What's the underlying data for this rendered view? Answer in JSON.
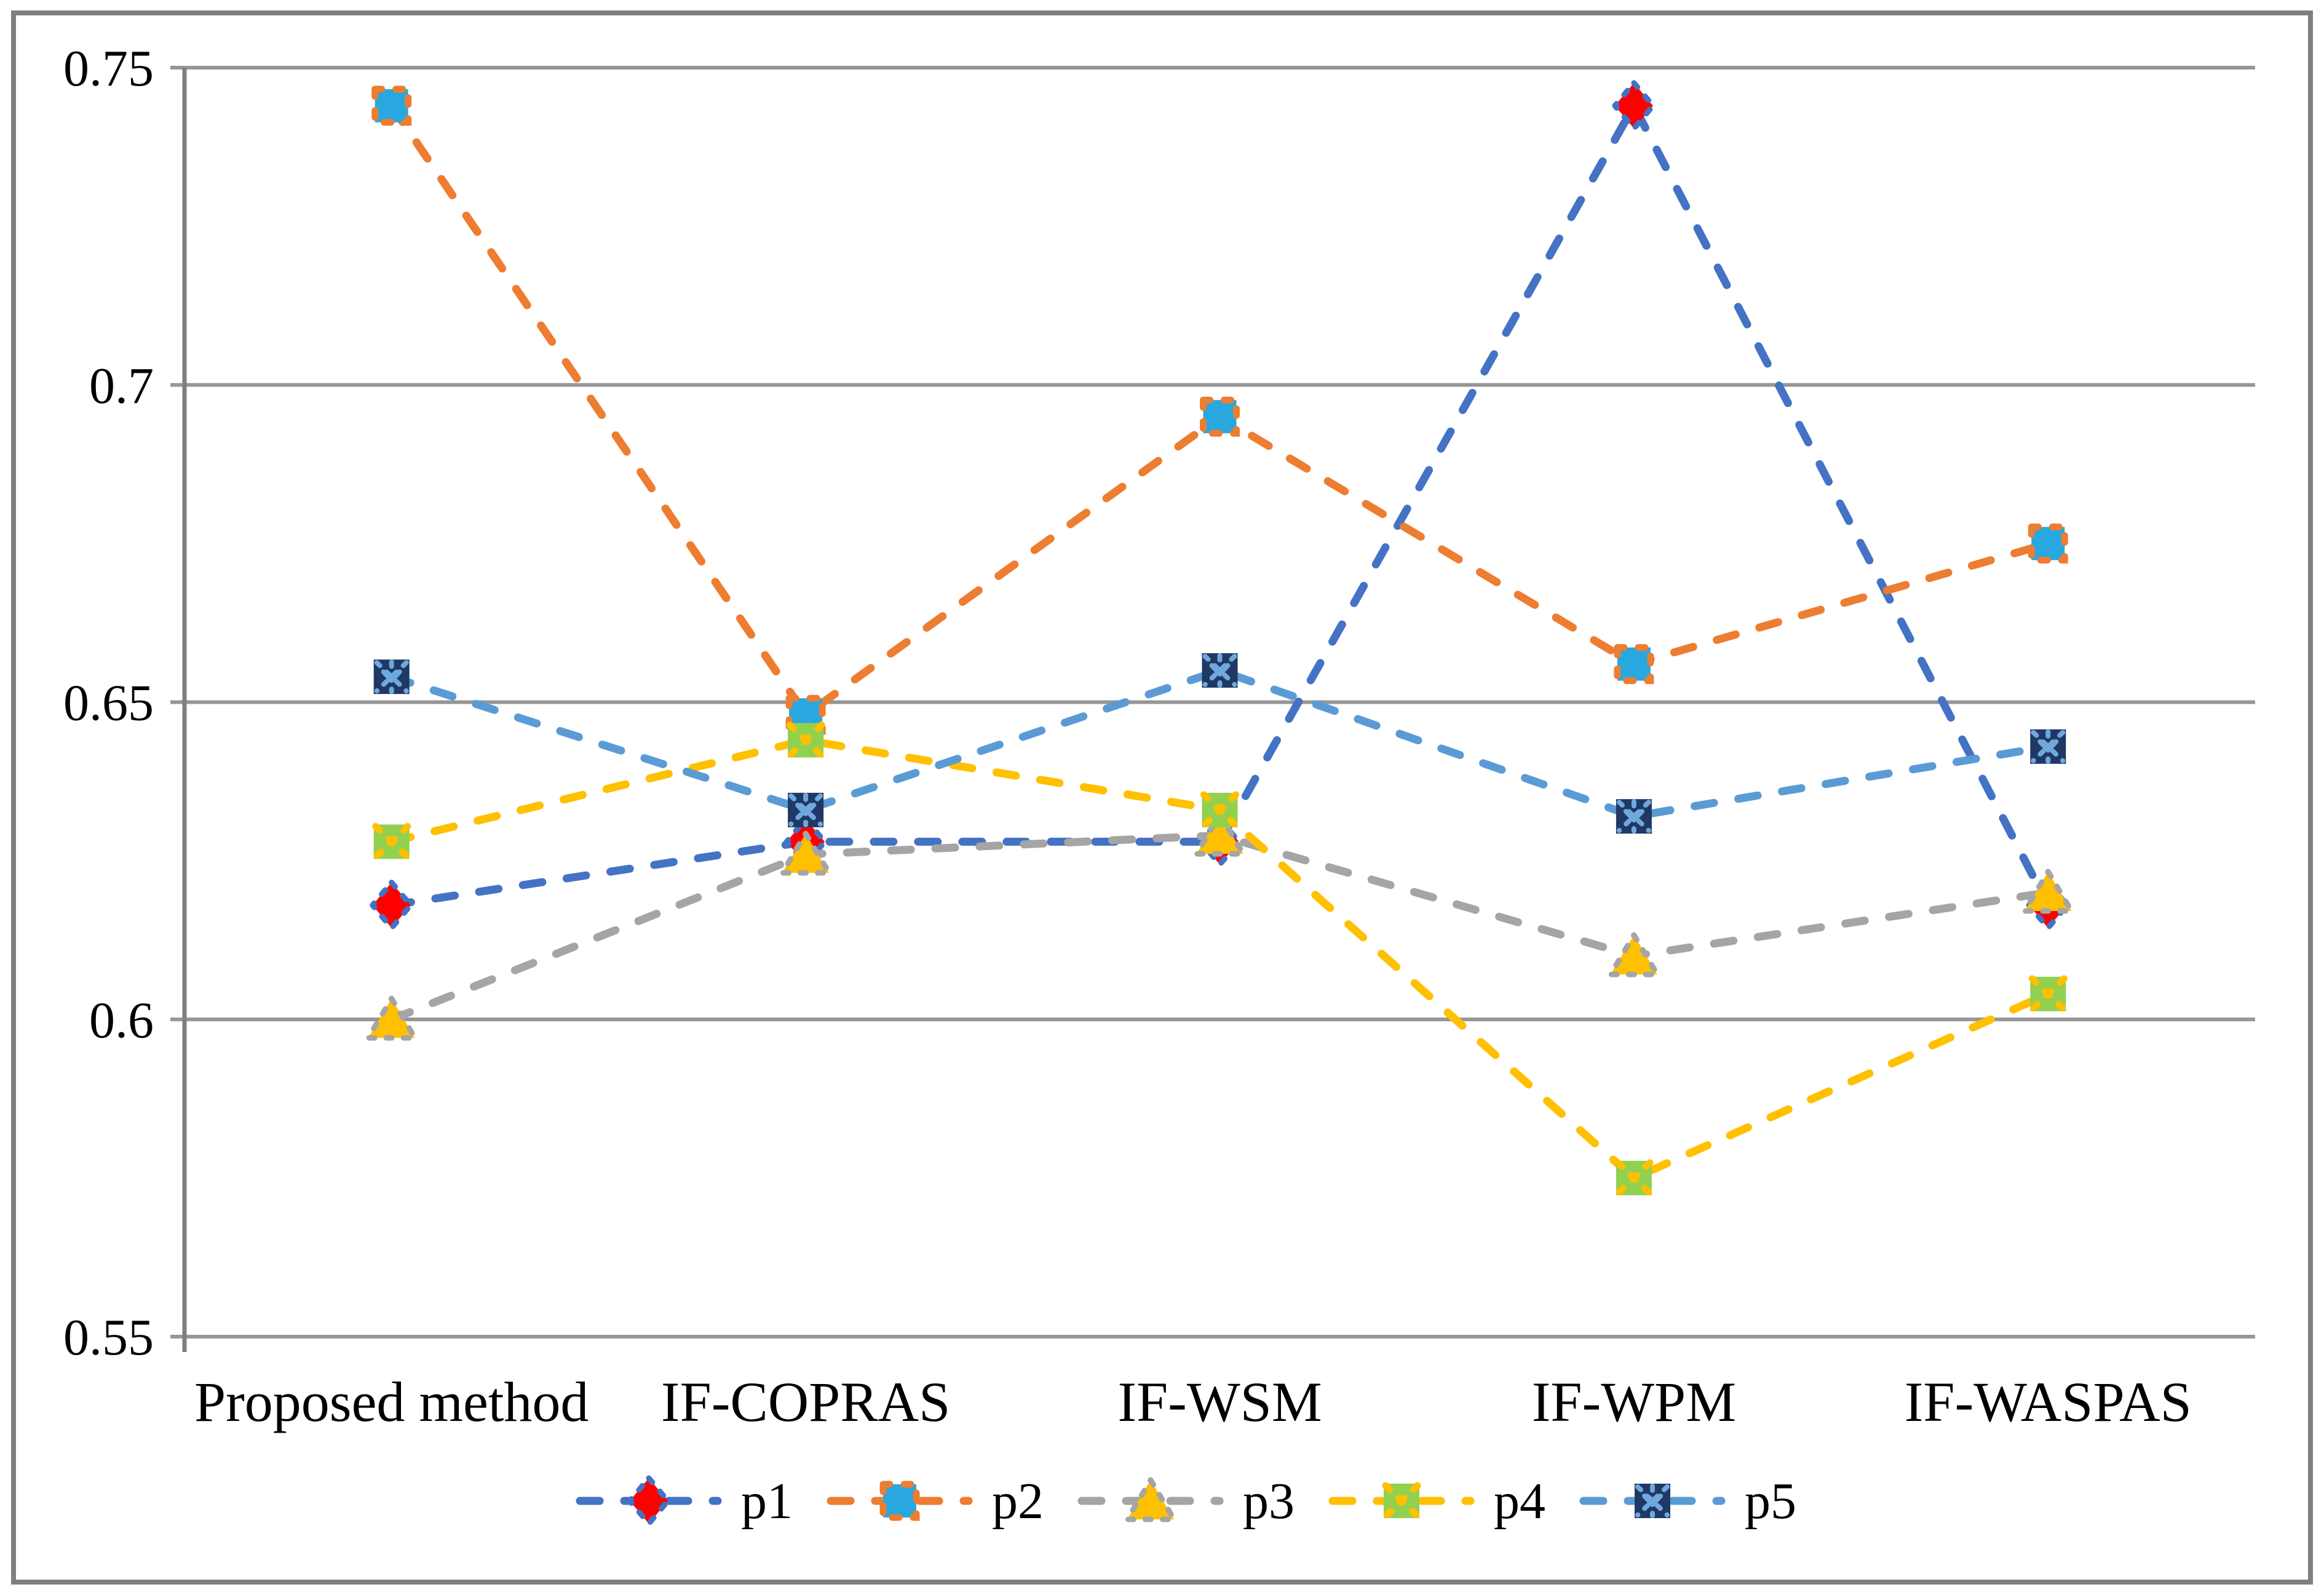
{
  "figure": {
    "background": "#FFFFFF",
    "border_color": "#7F7F7F"
  },
  "chart_data": {
    "type": "line",
    "title": "",
    "xlabel": "",
    "ylabel": "",
    "categories": [
      "Proposed method",
      "IF-COPRAS",
      "IF-WSM",
      "IF-WPM",
      "IF-WASPAS"
    ],
    "series": [
      {
        "name": "p1",
        "line_color": "#4472C4",
        "line_style": "dashed",
        "marker": "diamond",
        "marker_fill": "#FF0000",
        "marker_outline": "#4472C4",
        "values": [
          0.618,
          0.628,
          0.628,
          0.744,
          0.618
        ]
      },
      {
        "name": "p2",
        "line_color": "#ED7D31",
        "line_style": "dashed",
        "marker": "square",
        "marker_fill": "#29A8DF",
        "marker_outline": "#ED7D31",
        "values": [
          0.744,
          0.648,
          0.695,
          0.656,
          0.675
        ]
      },
      {
        "name": "p3",
        "line_color": "#A5A5A5",
        "line_style": "dashed",
        "marker": "triangle",
        "marker_fill": "#FFC000",
        "marker_outline": "#A5A5A5",
        "values": [
          0.6,
          0.626,
          0.629,
          0.61,
          0.62
        ]
      },
      {
        "name": "p4",
        "line_color": "#FFC000",
        "line_style": "dashed",
        "marker": "square-x",
        "marker_fill": "#92D050",
        "marker_outline": "#FFC000",
        "values": [
          0.628,
          0.644,
          0.633,
          0.575,
          0.604
        ]
      },
      {
        "name": "p5",
        "line_color": "#5B9BD5",
        "line_style": "dashed",
        "marker": "square-star",
        "marker_fill": "#1F3864",
        "marker_outline": "#6FA8DC",
        "values": [
          0.654,
          0.633,
          0.655,
          0.632,
          0.643
        ]
      }
    ],
    "ylim": [
      0.55,
      0.75
    ],
    "yticks": [
      0.55,
      0.6,
      0.65,
      0.7,
      0.75
    ],
    "ytick_labels": [
      "0.55",
      "0.6",
      "0.65",
      "0.7",
      "0.75"
    ],
    "grid": true,
    "gridline_color": "#969696",
    "axis_color": "#7F7F7F",
    "legend_position": "bottom",
    "legend_labels": [
      "p1",
      "p2",
      "p3",
      "p4",
      "p5"
    ]
  }
}
